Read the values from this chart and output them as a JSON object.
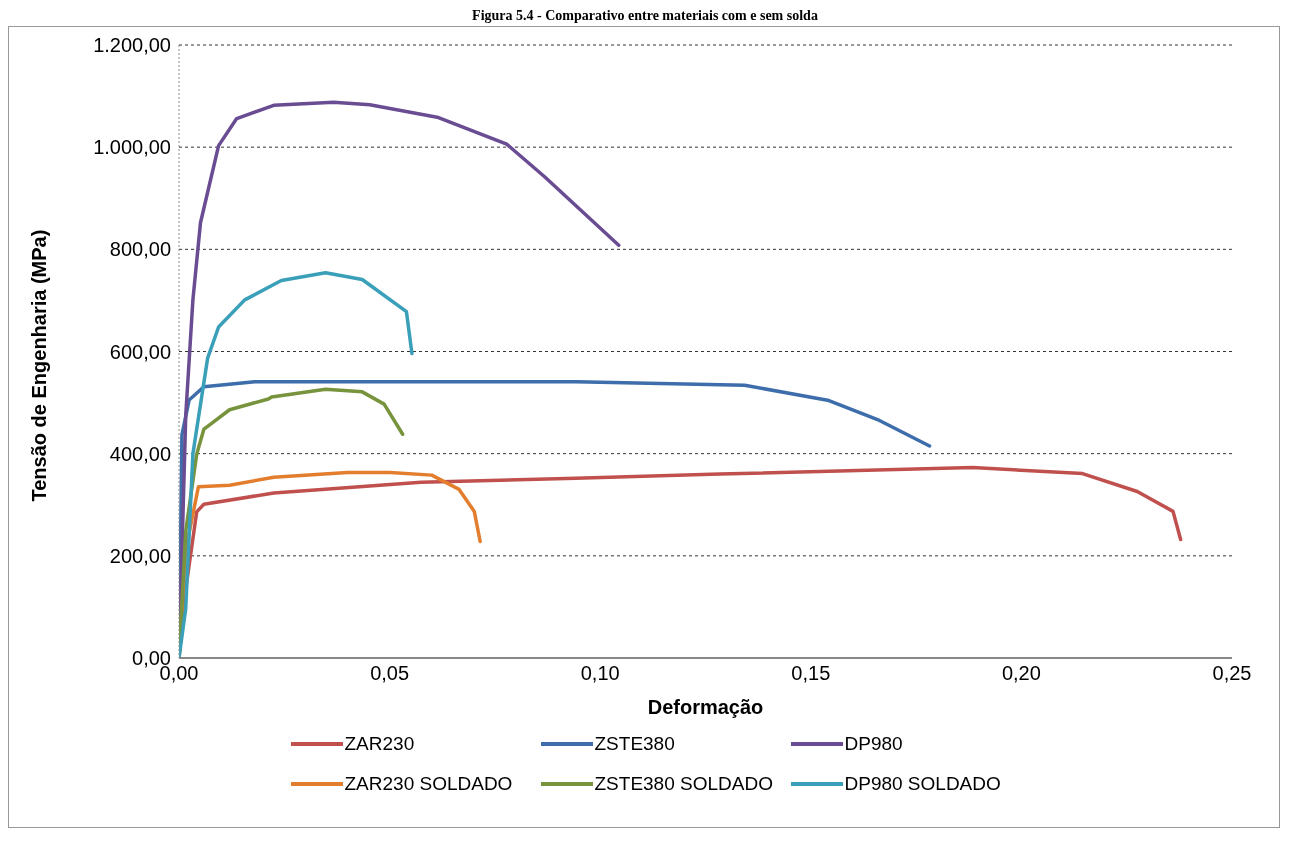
{
  "chart_data": {
    "type": "line",
    "title": "Figura 5.4 - Comparativo entre materiais com e sem solda",
    "xlabel": "Deformação",
    "ylabel": "Tensão de Engenharia (MPa)",
    "xlim": [
      0,
      0.25
    ],
    "ylim": [
      0,
      1200
    ],
    "xticks": [
      {
        "value": 0,
        "label": "0,00"
      },
      {
        "value": 0.05,
        "label": "0,05"
      },
      {
        "value": 0.1,
        "label": "0,10"
      },
      {
        "value": 0.15,
        "label": "0,15"
      },
      {
        "value": 0.2,
        "label": "0,20"
      },
      {
        "value": 0.25,
        "label": "0,25"
      }
    ],
    "yticks": [
      {
        "value": 0,
        "label": "0,00"
      },
      {
        "value": 200,
        "label": "200,00"
      },
      {
        "value": 400,
        "label": "400,00"
      },
      {
        "value": 600,
        "label": "600,00"
      },
      {
        "value": 800,
        "label": "800,00"
      },
      {
        "value": 1000,
        "label": "1.000,00"
      },
      {
        "value": 1200,
        "label": "1.200,00"
      }
    ],
    "grid": "y",
    "legend": "bottom",
    "marker": "none",
    "line_style": "solid",
    "series": [
      {
        "name": "ZAR230",
        "color": "#c0504d",
        "x": [
          0,
          0.0016,
          0.0042,
          0.0059,
          0.0225,
          0.0575,
          0.0942,
          0.1284,
          0.1884,
          0.2145,
          0.2275,
          0.236,
          0.2378
        ],
        "values": [
          0,
          135,
          286,
          301,
          323,
          344,
          352,
          360,
          373,
          361,
          326,
          287,
          232
        ]
      },
      {
        "name": "ZSTE380",
        "color": "#3d6daa",
        "x": [
          0,
          0.0007,
          0.0024,
          0.0059,
          0.018,
          0.0942,
          0.1343,
          0.1543,
          0.1663,
          0.1782
        ],
        "values": [
          0,
          437,
          505,
          531,
          541,
          541,
          534,
          504,
          465,
          415
        ]
      },
      {
        "name": "DP980",
        "color": "#6a4c93",
        "x": [
          0,
          0.0016,
          0.0033,
          0.0051,
          0.0094,
          0.0137,
          0.0225,
          0.0367,
          0.0453,
          0.0616,
          0.0778,
          0.0868,
          0.1044
        ],
        "values": [
          0,
          475,
          701,
          852,
          1003,
          1056,
          1082,
          1088,
          1083,
          1058,
          1006,
          942,
          808
        ]
      },
      {
        "name": "ZAR230 SOLDADO",
        "color": "#e37e2f",
        "x": [
          0,
          0.0016,
          0.0046,
          0.012,
          0.0225,
          0.04,
          0.0501,
          0.06,
          0.0665,
          0.0701,
          0.0715
        ],
        "values": [
          0,
          211,
          335,
          338,
          354,
          363,
          363,
          358,
          330,
          287,
          228
        ]
      },
      {
        "name": "ZSTE380 SOLDADO",
        "color": "#77933c",
        "x": [
          0,
          0.0016,
          0.0042,
          0.0059,
          0.0072,
          0.012,
          0.0212,
          0.022,
          0.0348,
          0.0435,
          0.0487,
          0.0531
        ],
        "values": [
          0,
          248,
          399,
          448,
          456,
          486,
          507,
          511,
          526,
          521,
          497,
          438
        ]
      },
      {
        "name": "DP980 SOLDADO",
        "color": "#3a9fb8",
        "x": [
          0,
          0.0016,
          0.0033,
          0.0068,
          0.0094,
          0.0156,
          0.0243,
          0.0348,
          0.0435,
          0.054,
          0.0553
        ],
        "values": [
          0,
          97,
          400,
          587,
          648,
          701,
          739,
          754,
          741,
          678,
          596
        ]
      }
    ]
  }
}
